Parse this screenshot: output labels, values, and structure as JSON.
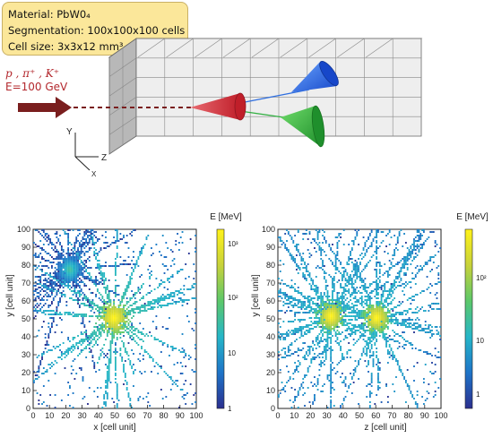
{
  "info": {
    "material": "Material: PbW0₄",
    "segmentation": "Segmentation: 100x100x100 cells",
    "cell_size": "Cell size: 3x3x12 mm³"
  },
  "beam": {
    "particles": "p , π⁺ , K⁺",
    "energy": "E=100 GeV"
  },
  "axes3d": {
    "y": "Y",
    "z": "Z",
    "x": "X"
  },
  "colors": {
    "beam_arrow": "#7a1e1e",
    "red_cone": "#d6303a",
    "blue_cone": "#2f6fe0",
    "green_cone": "#33b043",
    "infobox_bg": "#fbe79a"
  },
  "plots": [
    {
      "id": "xy",
      "xlabel": "x [cell unit]",
      "ylabel": "y [cell unit]",
      "colorbar_title": "E [MeV]",
      "xticks": [
        "0",
        "10",
        "20",
        "30",
        "40",
        "50",
        "60",
        "70",
        "80",
        "90",
        "100"
      ],
      "yticks": [
        "0",
        "10",
        "20",
        "30",
        "40",
        "50",
        "60",
        "70",
        "80",
        "90",
        "100"
      ],
      "cb_labels": [
        "10³",
        "10²",
        "10",
        "1"
      ]
    },
    {
      "id": "zy",
      "xlabel": "z [cell unit]",
      "ylabel": "y [cell unit]",
      "colorbar_title": "E [MeV]",
      "xticks": [
        "0",
        "10",
        "20",
        "30",
        "40",
        "50",
        "60",
        "70",
        "80",
        "90",
        "100"
      ],
      "yticks": [
        "0",
        "10",
        "20",
        "30",
        "40",
        "50",
        "60",
        "70",
        "80",
        "90",
        "100"
      ],
      "cb_labels": [
        "10²",
        "10",
        "1"
      ]
    }
  ],
  "chart_data": [
    {
      "type": "heatmap",
      "xlabel": "x [cell unit]",
      "ylabel": "y [cell unit]",
      "colorbar": "E [MeV]",
      "scale": "log",
      "xlim": [
        0,
        100
      ],
      "ylim": [
        0,
        100
      ],
      "zlim": [
        1,
        1000
      ],
      "hotspots": [
        {
          "x": 49,
          "y": 50,
          "E": 1000
        },
        {
          "x": 22,
          "y": 77,
          "E": 30
        }
      ]
    },
    {
      "type": "heatmap",
      "xlabel": "z [cell unit]",
      "ylabel": "y [cell unit]",
      "colorbar": "E [MeV]",
      "scale": "log",
      "xlim": [
        0,
        100
      ],
      "ylim": [
        0,
        100
      ],
      "zlim": [
        1,
        300
      ],
      "hotspots": [
        {
          "x": 32,
          "y": 51,
          "E": 300
        },
        {
          "x": 60,
          "y": 50,
          "E": 300
        }
      ]
    }
  ]
}
